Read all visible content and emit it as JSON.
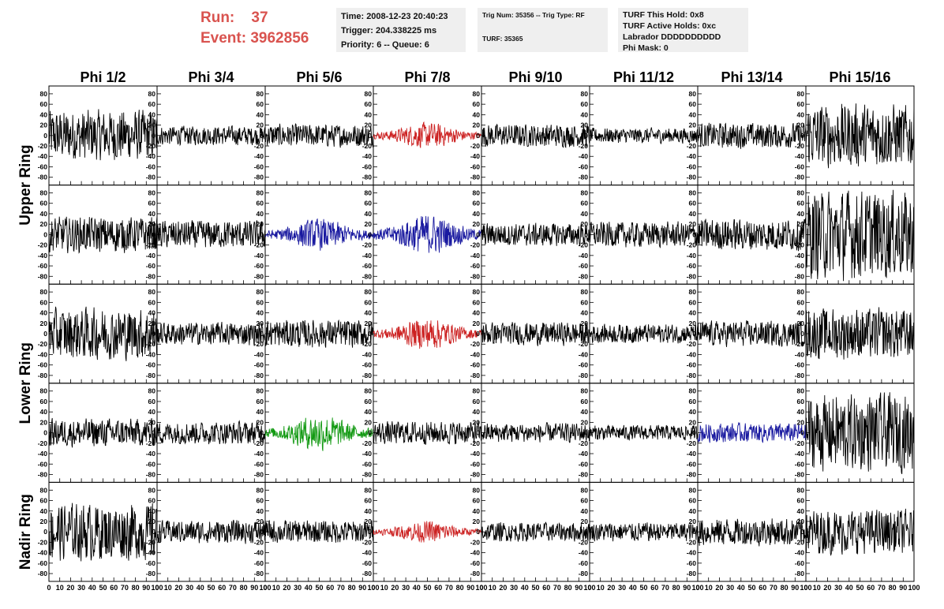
{
  "header": {
    "run_label": "Run:",
    "run_value": "37",
    "event_label": "Event:",
    "event_value": "3962856",
    "time_text": "Time: 2008-12-23 20:40:23",
    "trigger_text": "Trigger: 204.338225 ms",
    "priority_text": "Priority: 6 -- Queue: 6",
    "trig_num_text": "Trig Num: 35356 -- Trig Type: RF",
    "turf_text": "TURF: 35365",
    "turf_hold_text": "TURF This Hold: 0x8",
    "turf_active_text": "TURF Active Holds: 0xc",
    "labrador_text": "Labrador DDDDDDDDDD",
    "phi_mask_text": "Phi Mask: 0"
  },
  "chart_data": {
    "type": "line",
    "columns": [
      "Phi 1/2",
      "Phi 3/4",
      "Phi 5/6",
      "Phi 7/8",
      "Phi 9/10",
      "Phi 11/12",
      "Phi 13/14",
      "Phi 15/16"
    ],
    "row_groups": [
      {
        "label": "Upper Ring",
        "rows": [
          0,
          1
        ]
      },
      {
        "label": "Lower Ring",
        "rows": [
          2,
          3
        ]
      },
      {
        "label": "Nadir Ring",
        "rows": [
          4
        ]
      }
    ],
    "ylim": [
      -95,
      95
    ],
    "yticks": [
      -80,
      -60,
      -40,
      -20,
      0,
      20,
      40,
      60,
      80
    ],
    "xlim": [
      0,
      100
    ],
    "xticks": [
      0,
      10,
      20,
      30,
      40,
      50,
      60,
      70,
      80,
      90,
      100
    ],
    "points_per_trace": 260,
    "colors": {
      "default": "#000000",
      "red": "#cc2222",
      "blue": "#1a1aa0",
      "green": "#119911"
    },
    "trace_color": [
      [
        "default",
        "default",
        "default",
        "red",
        "default",
        "default",
        "default",
        "default"
      ],
      [
        "default",
        "default",
        "blue",
        "blue",
        "default",
        "default",
        "default",
        "default"
      ],
      [
        "default",
        "default",
        "default",
        "red",
        "default",
        "default",
        "default",
        "default"
      ],
      [
        "default",
        "default",
        "green",
        "default",
        "default",
        "default",
        "blue",
        "default"
      ],
      [
        "default",
        "default",
        "default",
        "red",
        "default",
        "default",
        "default",
        "default"
      ]
    ],
    "trace_amplitude": [
      [
        40,
        15,
        18,
        18,
        18,
        12,
        20,
        50
      ],
      [
        28,
        22,
        22,
        28,
        18,
        20,
        25,
        70
      ],
      [
        40,
        18,
        22,
        22,
        18,
        15,
        20,
        40
      ],
      [
        22,
        18,
        25,
        18,
        15,
        12,
        15,
        60
      ],
      [
        45,
        18,
        18,
        15,
        15,
        15,
        22,
        35
      ]
    ],
    "trace_envelope": [
      [
        "flat",
        "flat",
        "flat",
        "burst",
        "flat",
        "flat",
        "flat",
        "flat"
      ],
      [
        "flat",
        "flat",
        "burst",
        "burst",
        "flat",
        "flat",
        "flat",
        "flat"
      ],
      [
        "flat",
        "flat",
        "flat",
        "burst",
        "flat",
        "flat",
        "flat",
        "flat"
      ],
      [
        "flat",
        "flat",
        "burst",
        "flat",
        "flat",
        "flat",
        "flat",
        "flat"
      ],
      [
        "flat",
        "flat",
        "flat",
        "burst",
        "flat",
        "flat",
        "flat",
        "flat"
      ]
    ]
  }
}
